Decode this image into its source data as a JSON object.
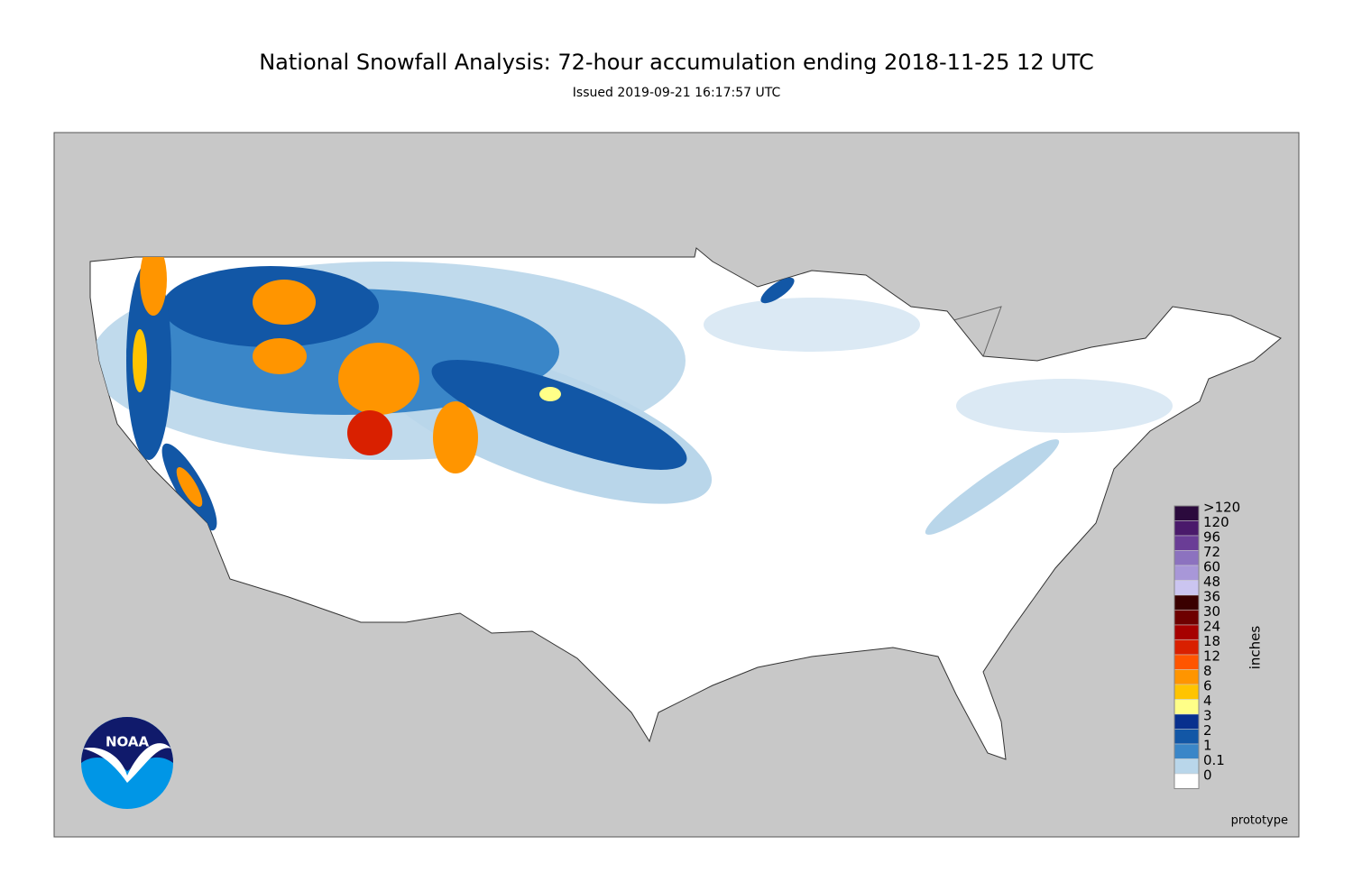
{
  "title": "National Snowfall Analysis: 72-hour accumulation ending 2018-11-25 12 UTC",
  "subtitle": "Issued 2019-09-21 16:17:57 UTC",
  "legend": {
    "units": "inches",
    "items": [
      {
        "label": ">120",
        "color": "#2b0a3d"
      },
      {
        "label": "120",
        "color": "#4a1a6b"
      },
      {
        "label": "96",
        "color": "#6a3d96"
      },
      {
        "label": "72",
        "color": "#8c72bf"
      },
      {
        "label": "60",
        "color": "#a897d8"
      },
      {
        "label": "48",
        "color": "#cbc5f0"
      },
      {
        "label": "36",
        "color": "#3a0000"
      },
      {
        "label": "30",
        "color": "#6e0000"
      },
      {
        "label": "24",
        "color": "#a60000"
      },
      {
        "label": "18",
        "color": "#d92000"
      },
      {
        "label": "12",
        "color": "#ff5500"
      },
      {
        "label": "8",
        "color": "#ff9500"
      },
      {
        "label": "6",
        "color": "#ffc400"
      },
      {
        "label": "4",
        "color": "#ffff88"
      },
      {
        "label": "3",
        "color": "#08308e"
      },
      {
        "label": "2",
        "color": "#1257a6"
      },
      {
        "label": "1",
        "color": "#3a86c8"
      },
      {
        "label": "0.1",
        "color": "#b9d6ea"
      },
      {
        "label": "0",
        "color": "#ffffff"
      }
    ]
  },
  "note": "prototype",
  "logo": "NOAA"
}
